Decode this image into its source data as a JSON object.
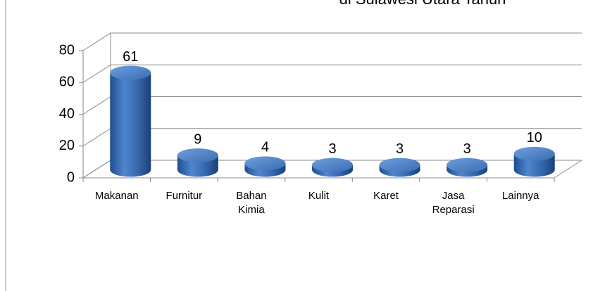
{
  "chart_data": {
    "type": "bar",
    "title": "di Sulawesi Utara Tahun",
    "categories": [
      "Makanan",
      "Furnitur",
      "Bahan Kimia",
      "Kulit",
      "Karet",
      "Jasa Reparasi",
      "Lainnya"
    ],
    "values": [
      61,
      9,
      4,
      3,
      3,
      3,
      10
    ],
    "color": "#3a6fb5",
    "ylim": [
      0,
      80
    ],
    "yticks": [
      0,
      20,
      40,
      60,
      80
    ],
    "grid": true
  }
}
